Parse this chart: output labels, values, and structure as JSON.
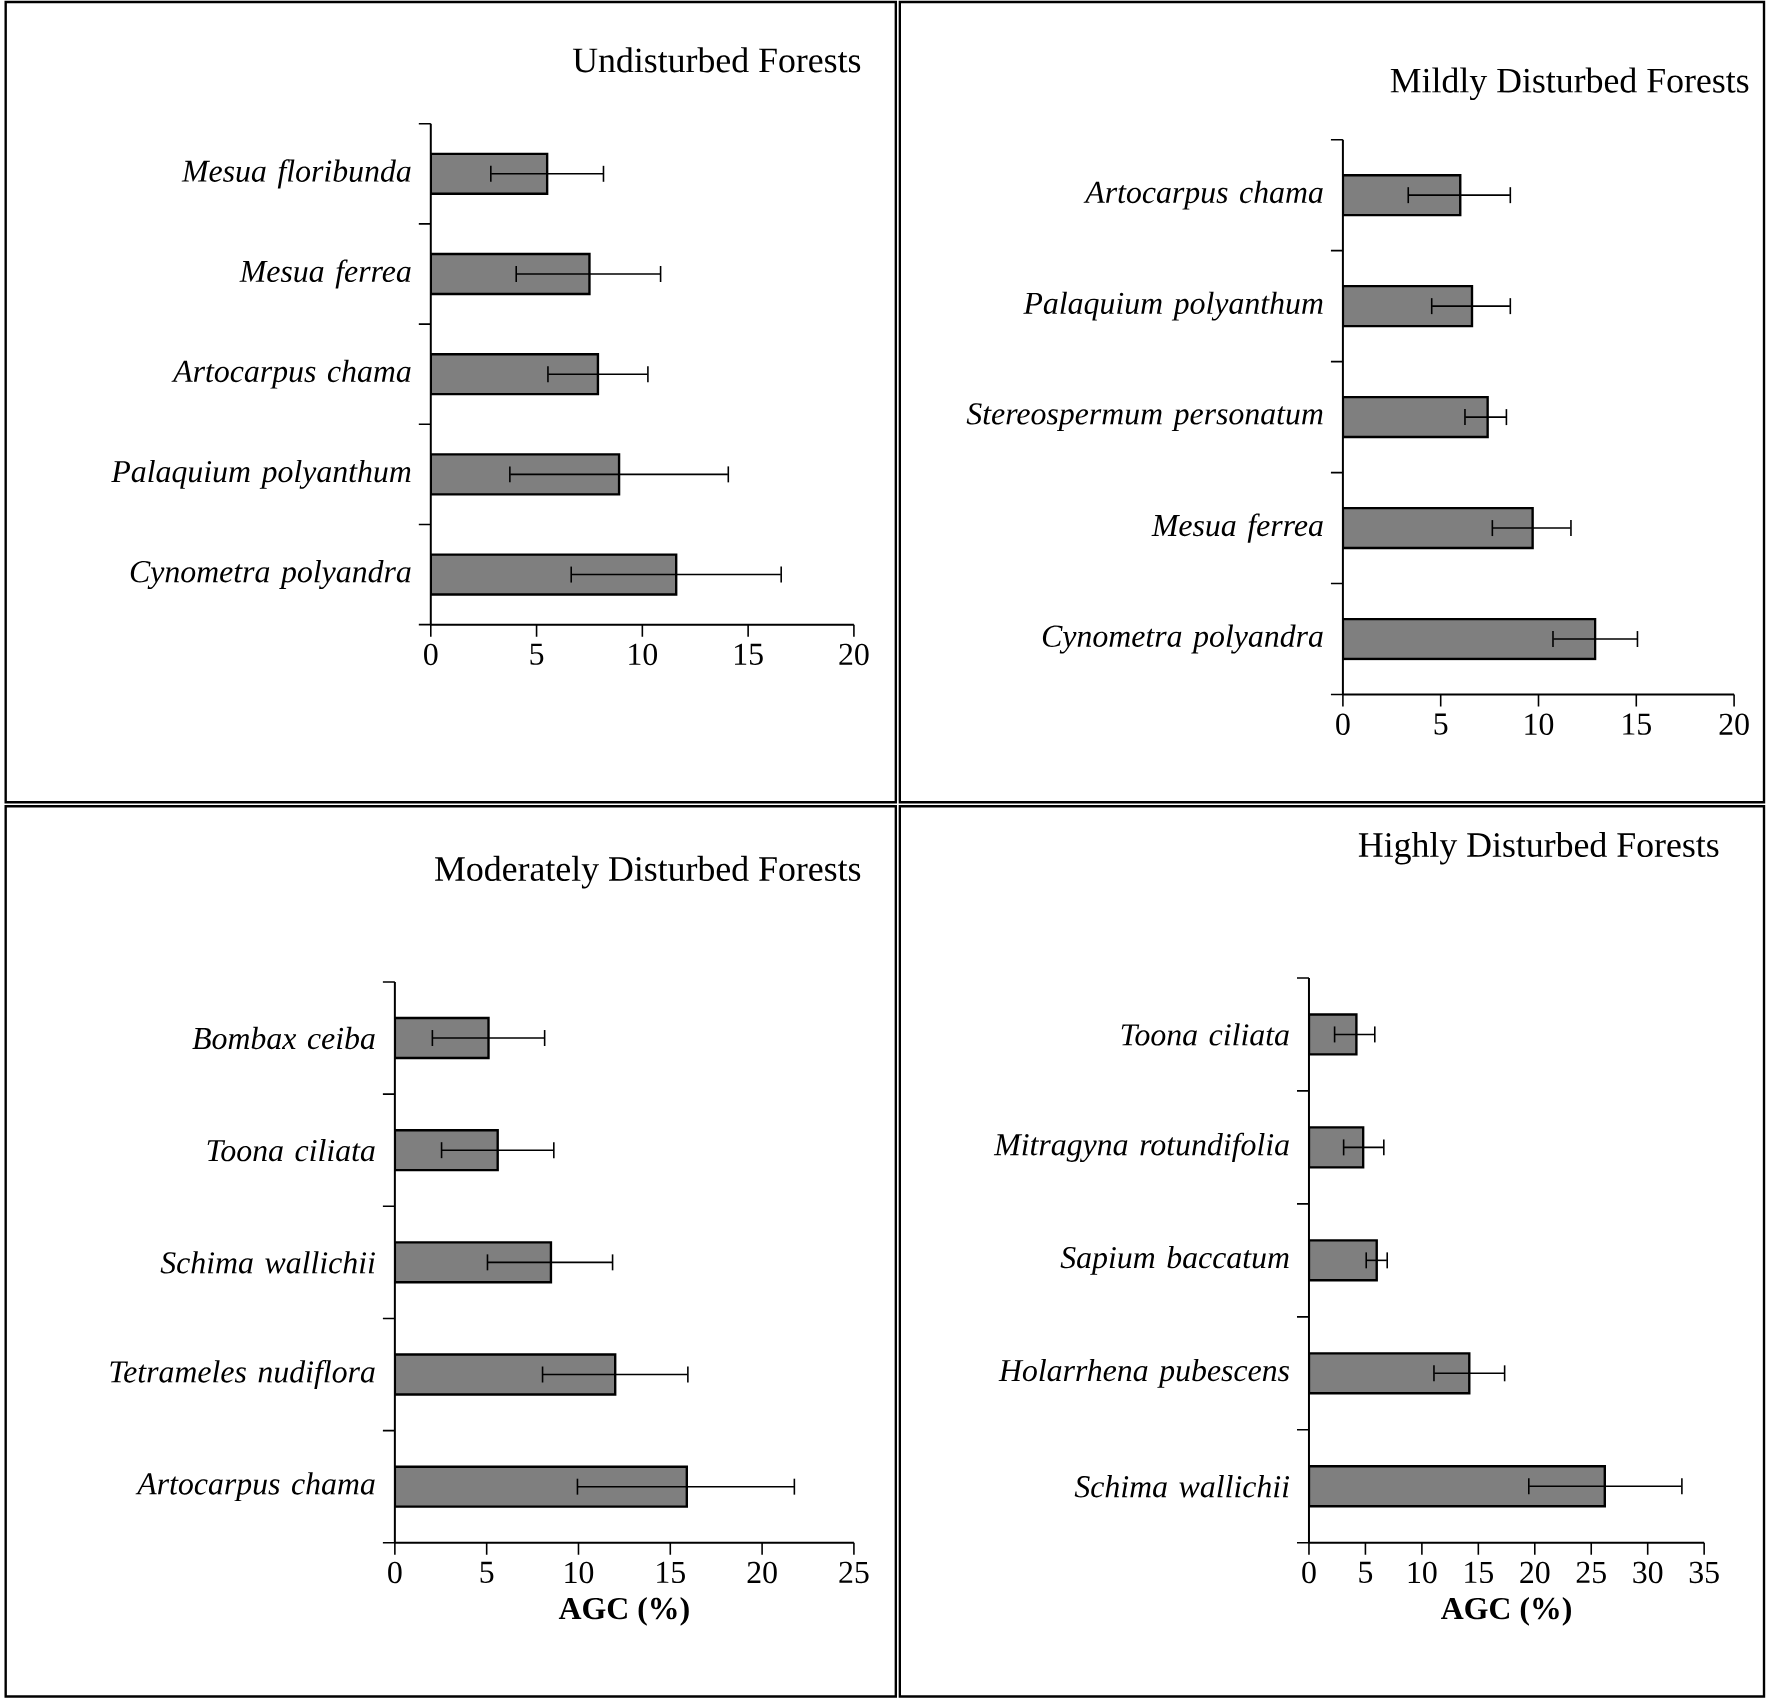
{
  "chart_data": [
    {
      "type": "bar",
      "orientation": "horizontal",
      "title": "Undisturbed Forests",
      "categories": [
        "Mesua floribunda",
        "Mesua ferrea",
        "Artocarpus chama",
        "Palaquium polyanthum",
        "Cynometra polyandra"
      ],
      "values": [
        5.5,
        7.5,
        7.9,
        8.9,
        11.6
      ],
      "errors": [
        [
          2.8,
          8.2
        ],
        [
          4.0,
          10.9
        ],
        [
          5.5,
          10.3
        ],
        [
          3.7,
          14.1
        ],
        [
          6.6,
          16.6
        ]
      ],
      "color": "#7f7f7f",
      "xlim": [
        0,
        20
      ],
      "xticks": [
        0,
        5,
        10,
        15,
        20
      ]
    },
    {
      "type": "bar",
      "orientation": "horizontal",
      "title": "Mildly Disturbed Forests",
      "categories": [
        "Artocarpus chama",
        "Palaquium polyanthum",
        "Stereospermum personatum",
        "Mesua ferrea",
        "Cynometra polyandra"
      ],
      "values": [
        6.0,
        6.6,
        7.4,
        9.7,
        12.9
      ],
      "errors": [
        [
          3.3,
          8.6
        ],
        [
          4.5,
          8.6
        ],
        [
          6.2,
          8.4
        ],
        [
          7.6,
          11.7
        ],
        [
          10.7,
          15.1
        ]
      ],
      "color": "#7f7f7f",
      "xlim": [
        0,
        20
      ],
      "xticks": [
        0,
        5,
        10,
        15,
        20
      ]
    },
    {
      "type": "bar",
      "orientation": "horizontal",
      "title": "Moderately Disturbed Forests",
      "xlabel": "AGC (%)",
      "categories": [
        "Bombax ceiba",
        "Toona ciliata",
        "Schima wallichii",
        "Tetrameles nudiflora",
        "Artocarpus chama"
      ],
      "values": [
        5.1,
        5.6,
        8.5,
        12.0,
        15.9
      ],
      "errors": [
        [
          2.0,
          8.2
        ],
        [
          2.5,
          8.7
        ],
        [
          5.0,
          11.9
        ],
        [
          8.0,
          16.0
        ],
        [
          9.9,
          21.8
        ]
      ],
      "color": "#7f7f7f",
      "xlim": [
        0,
        25
      ],
      "xticks": [
        0,
        5,
        10,
        15,
        20,
        25
      ]
    },
    {
      "type": "bar",
      "orientation": "horizontal",
      "title": "Highly Disturbed Forests",
      "xlabel": "AGC (%)",
      "categories": [
        "Toona ciliata",
        "Mitragyna rotundifolia",
        "Sapium baccatum",
        "Holarrhena pubescens",
        "Schima wallichii"
      ],
      "values": [
        4.2,
        4.8,
        6.0,
        14.2,
        26.2
      ],
      "errors": [
        [
          2.2,
          5.9
        ],
        [
          3.0,
          6.7
        ],
        [
          5.0,
          7.0
        ],
        [
          11.0,
          17.4
        ],
        [
          19.4,
          33.1
        ]
      ],
      "color": "#7f7f7f",
      "xlim": [
        0,
        35
      ],
      "xticks": [
        0,
        5,
        10,
        15,
        20,
        25,
        30,
        35
      ]
    }
  ]
}
